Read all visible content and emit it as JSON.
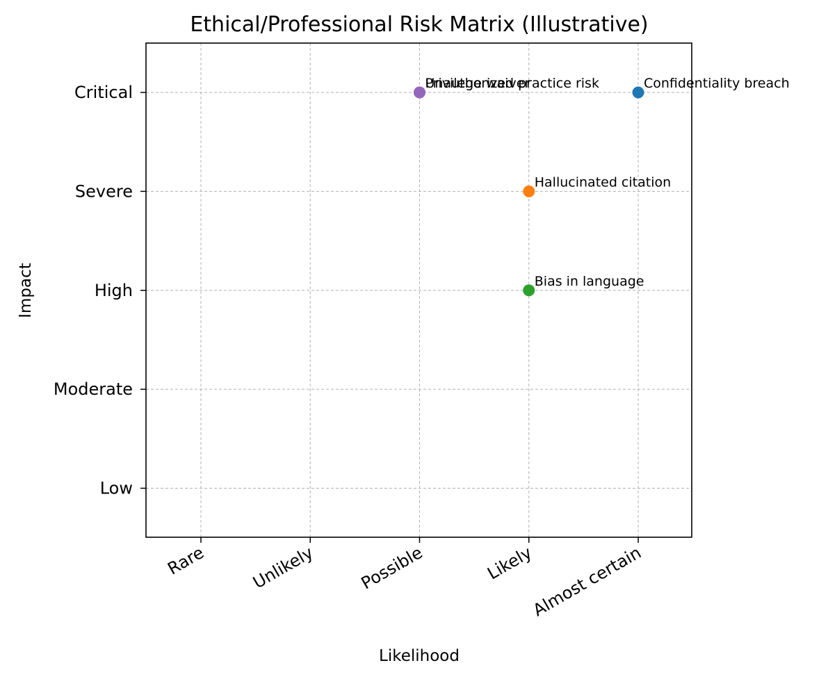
{
  "chart_data": {
    "type": "scatter",
    "title": "Ethical/Professional Risk Matrix (Illustrative)",
    "xlabel": "Likelihood",
    "ylabel": "Impact",
    "x_categories": [
      "Rare",
      "Unlikely",
      "Possible",
      "Likely",
      "Almost certain"
    ],
    "y_categories": [
      "Low",
      "Moderate",
      "High",
      "Severe",
      "Critical"
    ],
    "grid": true,
    "points": [
      {
        "label": "Confidentiality breach",
        "x": "Almost certain",
        "y": "Critical",
        "color": "#1f77b4"
      },
      {
        "label": "Hallucinated citation",
        "x": "Likely",
        "y": "Severe",
        "color": "#ff7f0e"
      },
      {
        "label": "Bias in language",
        "x": "Likely",
        "y": "High",
        "color": "#2ca02c"
      },
      {
        "label": "Unauthorized practice risk",
        "x": "Possible",
        "y": "Critical",
        "color": "#d62728"
      },
      {
        "label": "Privilege waiver",
        "x": "Possible",
        "y": "Critical",
        "color": "#9467bd"
      }
    ]
  }
}
